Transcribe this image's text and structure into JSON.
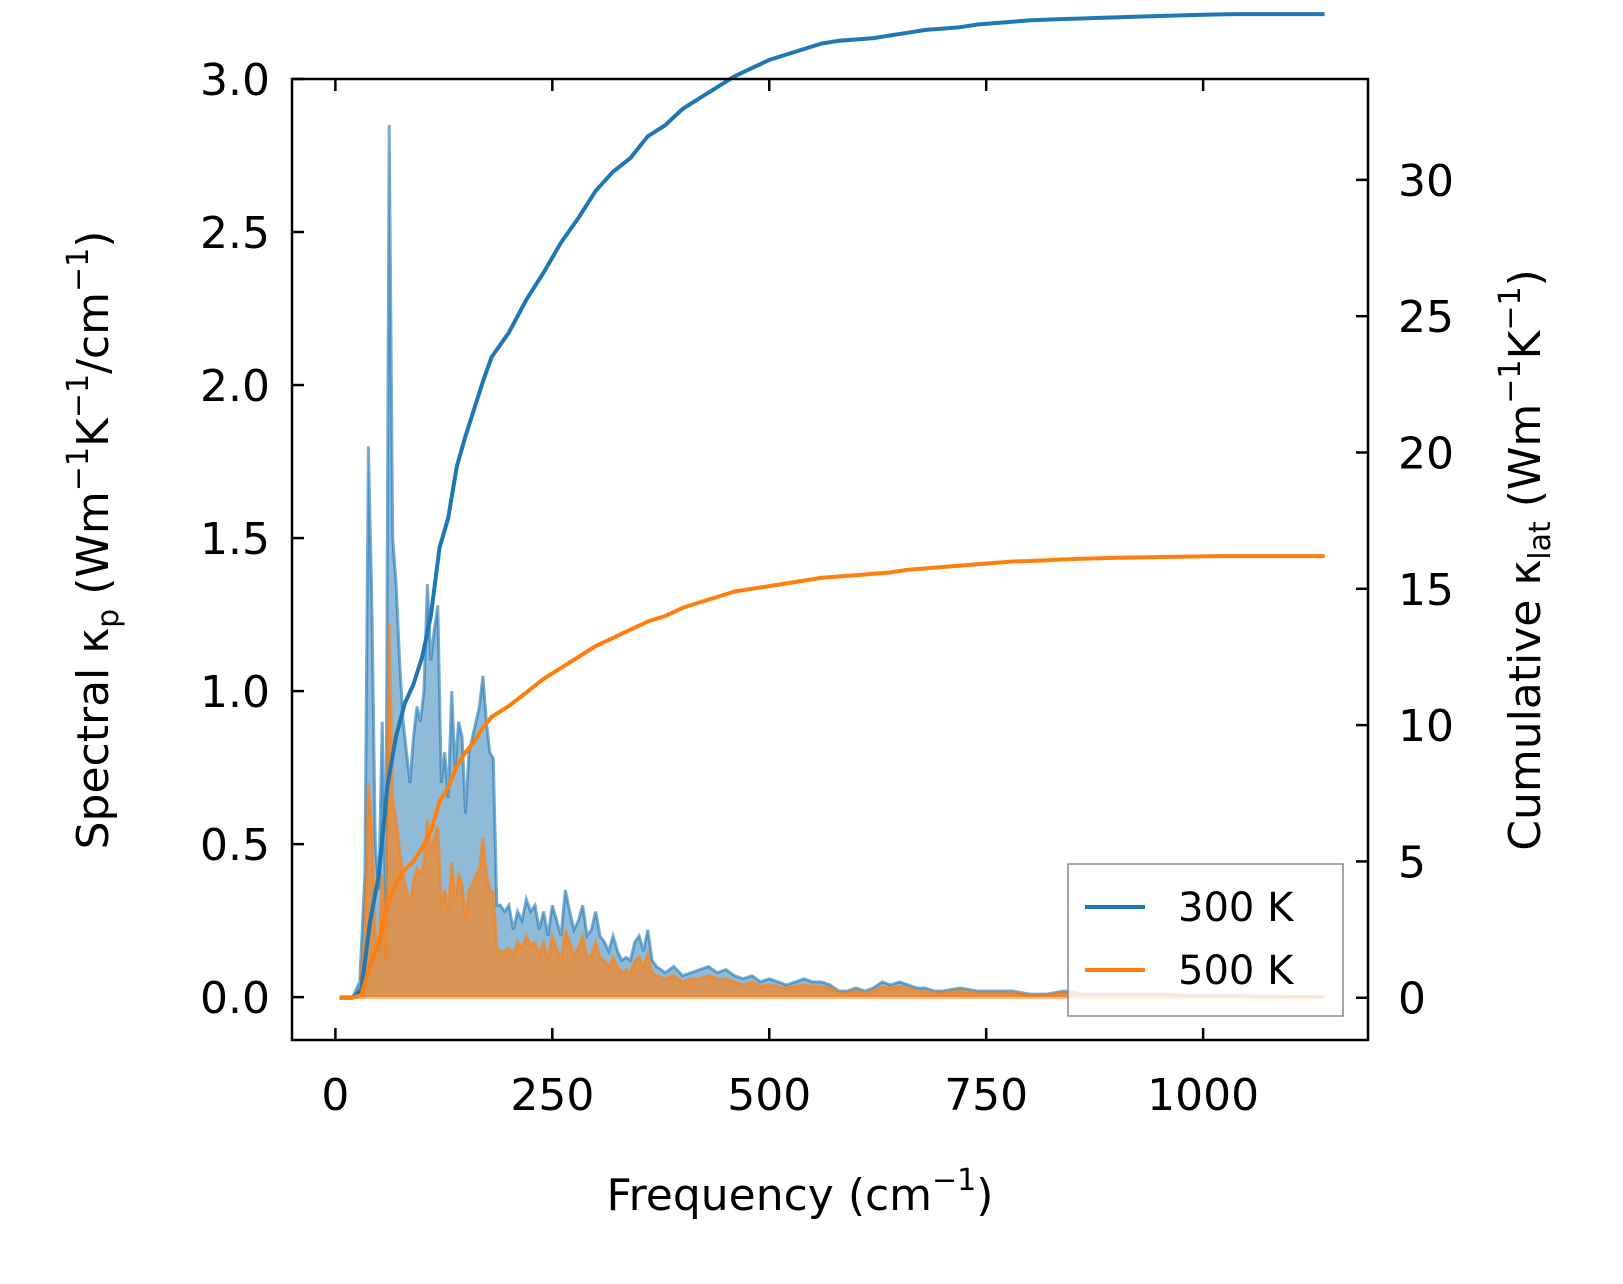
{
  "colors": {
    "series_300K": "#1f77b4",
    "series_500K": "#ff7f0e",
    "fill_300K": "#1f77b4",
    "fill_500K": "#ff7f0e",
    "axis": "#000000"
  },
  "chart_data": {
    "type": "line",
    "xlabel_main": "Frequency (cm",
    "xlabel_sup": "−1",
    "xlabel_end": ")",
    "ylabel_left": {
      "p1": "Spectral κ",
      "sub1": "p",
      "p2": " (Wm",
      "sup1": "−1",
      "p3": "K",
      "sup2": "−1",
      "p4": "/cm",
      "sup3": "−1",
      "p5": ")"
    },
    "ylabel_right": {
      "p1": "Cumulative κ",
      "sub1": "lat",
      "p2": " (Wm",
      "sup1": "−1",
      "p3": "K",
      "sup2": "−1",
      "p4": ")"
    },
    "xlim": [
      -50,
      1190
    ],
    "ylim_left": [
      -0.14,
      3.0
    ],
    "ylim_right": [
      -1.55,
      33.7
    ],
    "x_ticks": [
      0,
      250,
      500,
      750,
      1000
    ],
    "x_tick_labels": [
      "0",
      "250",
      "500",
      "750",
      "1000"
    ],
    "y_left_ticks": [
      0.0,
      0.5,
      1.0,
      1.5,
      2.0,
      2.5,
      3.0
    ],
    "y_left_tick_labels": [
      "0.0",
      "0.5",
      "1.0",
      "1.5",
      "2.0",
      "2.5",
      "3.0"
    ],
    "y_right_ticks": [
      0,
      5,
      10,
      15,
      20,
      25,
      30
    ],
    "y_right_tick_labels": [
      "0",
      "5",
      "10",
      "15",
      "20",
      "25",
      "30"
    ],
    "legend_position": "lower-right",
    "legend": [
      "300 K",
      "500 K"
    ],
    "spectral": [
      {
        "name": "300 K",
        "x": [
          5,
          20,
          28,
          34,
          38,
          42,
          46,
          50,
          54,
          58,
          62,
          66,
          70,
          74,
          78,
          82,
          86,
          90,
          94,
          98,
          102,
          106,
          110,
          114,
          118,
          122,
          126,
          130,
          134,
          138,
          142,
          146,
          150,
          154,
          158,
          162,
          166,
          170,
          174,
          178,
          182,
          186,
          190,
          195,
          200,
          205,
          210,
          215,
          220,
          225,
          230,
          235,
          240,
          245,
          250,
          255,
          260,
          265,
          270,
          275,
          280,
          285,
          290,
          295,
          300,
          305,
          310,
          315,
          320,
          325,
          330,
          335,
          340,
          345,
          350,
          355,
          360,
          365,
          370,
          380,
          390,
          400,
          410,
          420,
          430,
          440,
          450,
          460,
          470,
          480,
          490,
          500,
          510,
          520,
          530,
          540,
          550,
          560,
          570,
          580,
          590,
          600,
          610,
          620,
          630,
          640,
          650,
          660,
          670,
          680,
          690,
          700,
          720,
          740,
          760,
          780,
          800,
          820,
          840,
          860,
          880,
          900,
          920,
          940,
          960,
          980,
          1000,
          1020,
          1040,
          1060,
          1080,
          1100,
          1120,
          1140
        ],
        "y": [
          0,
          0,
          0.05,
          0.4,
          1.8,
          1.3,
          0.5,
          0.35,
          0.9,
          0.3,
          2.85,
          1.5,
          1.35,
          1.1,
          0.9,
          0.8,
          0.7,
          0.85,
          0.95,
          0.9,
          1.0,
          1.35,
          1.1,
          1.2,
          1.28,
          0.7,
          0.8,
          0.65,
          1.0,
          0.75,
          0.9,
          0.85,
          0.6,
          0.8,
          0.85,
          0.9,
          0.95,
          1.05,
          0.9,
          0.8,
          0.78,
          0.3,
          0.3,
          0.28,
          0.3,
          0.22,
          0.28,
          0.25,
          0.32,
          0.28,
          0.3,
          0.22,
          0.28,
          0.2,
          0.3,
          0.25,
          0.2,
          0.35,
          0.28,
          0.22,
          0.25,
          0.3,
          0.2,
          0.22,
          0.28,
          0.2,
          0.18,
          0.15,
          0.2,
          0.15,
          0.12,
          0.13,
          0.12,
          0.18,
          0.2,
          0.15,
          0.22,
          0.12,
          0.1,
          0.08,
          0.1,
          0.07,
          0.08,
          0.09,
          0.1,
          0.08,
          0.09,
          0.07,
          0.06,
          0.07,
          0.05,
          0.06,
          0.05,
          0.04,
          0.05,
          0.06,
          0.05,
          0.05,
          0.04,
          0.02,
          0.02,
          0.03,
          0.02,
          0.03,
          0.05,
          0.04,
          0.05,
          0.04,
          0.03,
          0.03,
          0.02,
          0.02,
          0.03,
          0.02,
          0.02,
          0.02,
          0.01,
          0.01,
          0.02,
          0.01,
          0.01,
          0.01,
          0.01,
          0.01,
          0.01,
          0.005,
          0.005,
          0.005,
          0.005,
          0.003,
          0.003,
          0.002,
          0.002,
          0.001
        ]
      },
      {
        "name": "500 K",
        "x": [
          5,
          20,
          28,
          34,
          38,
          42,
          46,
          50,
          54,
          58,
          62,
          66,
          70,
          74,
          78,
          82,
          86,
          90,
          94,
          98,
          102,
          106,
          110,
          114,
          118,
          122,
          126,
          130,
          134,
          138,
          142,
          146,
          150,
          154,
          158,
          162,
          166,
          170,
          174,
          178,
          182,
          186,
          190,
          195,
          200,
          205,
          210,
          215,
          220,
          225,
          230,
          235,
          240,
          245,
          250,
          255,
          260,
          265,
          270,
          275,
          280,
          285,
          290,
          295,
          300,
          305,
          310,
          315,
          320,
          325,
          330,
          335,
          340,
          345,
          350,
          355,
          360,
          365,
          370,
          380,
          390,
          400,
          410,
          420,
          430,
          440,
          450,
          460,
          470,
          480,
          490,
          500,
          510,
          520,
          530,
          540,
          550,
          560,
          570,
          580,
          590,
          600,
          610,
          620,
          630,
          640,
          650,
          660,
          670,
          680,
          690,
          700,
          720,
          740,
          760,
          780,
          800,
          820,
          840,
          860,
          880,
          900,
          920,
          940,
          960,
          980,
          1000,
          1020,
          1040,
          1060,
          1080,
          1100,
          1120,
          1140
        ],
        "y": [
          0,
          0,
          0.02,
          0.2,
          0.7,
          0.55,
          0.2,
          0.15,
          0.4,
          0.12,
          1.22,
          0.65,
          0.58,
          0.48,
          0.4,
          0.35,
          0.3,
          0.38,
          0.42,
          0.4,
          0.44,
          0.58,
          0.48,
          0.52,
          0.56,
          0.3,
          0.35,
          0.28,
          0.44,
          0.32,
          0.4,
          0.37,
          0.26,
          0.35,
          0.37,
          0.4,
          0.42,
          0.52,
          0.4,
          0.35,
          0.34,
          0.16,
          0.15,
          0.15,
          0.16,
          0.14,
          0.18,
          0.16,
          0.2,
          0.17,
          0.18,
          0.14,
          0.18,
          0.12,
          0.2,
          0.16,
          0.12,
          0.22,
          0.18,
          0.14,
          0.16,
          0.2,
          0.13,
          0.14,
          0.18,
          0.13,
          0.12,
          0.1,
          0.13,
          0.1,
          0.08,
          0.09,
          0.08,
          0.12,
          0.13,
          0.1,
          0.14,
          0.08,
          0.07,
          0.06,
          0.07,
          0.05,
          0.06,
          0.06,
          0.07,
          0.06,
          0.06,
          0.05,
          0.04,
          0.05,
          0.035,
          0.04,
          0.035,
          0.03,
          0.035,
          0.04,
          0.035,
          0.035,
          0.03,
          0.015,
          0.015,
          0.02,
          0.015,
          0.02,
          0.035,
          0.03,
          0.035,
          0.03,
          0.02,
          0.02,
          0.015,
          0.015,
          0.02,
          0.015,
          0.015,
          0.015,
          0.008,
          0.008,
          0.015,
          0.008,
          0.008,
          0.008,
          0.008,
          0.008,
          0.008,
          0.004,
          0.004,
          0.004,
          0.004,
          0.002,
          0.002,
          0.002,
          0.002,
          0.001
        ]
      }
    ],
    "cumulative": [
      {
        "name": "300 K",
        "x": [
          5,
          20,
          30,
          40,
          50,
          60,
          70,
          80,
          90,
          100,
          110,
          120,
          130,
          140,
          150,
          160,
          170,
          180,
          200,
          220,
          240,
          260,
          280,
          300,
          320,
          340,
          360,
          380,
          400,
          420,
          440,
          460,
          480,
          500,
          520,
          540,
          560,
          580,
          600,
          620,
          640,
          660,
          680,
          700,
          720,
          740,
          760,
          780,
          800,
          820,
          840,
          860,
          880,
          900,
          920,
          940,
          960,
          980,
          1000,
          1020,
          1040,
          1060,
          1080,
          1100,
          1120,
          1140
        ],
        "y": [
          0,
          0,
          0.3,
          2.8,
          4.5,
          7.8,
          9.6,
          10.8,
          11.5,
          12.5,
          14.0,
          16.5,
          17.6,
          19.5,
          20.6,
          21.6,
          22.6,
          23.5,
          24.4,
          25.6,
          26.6,
          27.7,
          28.6,
          29.6,
          30.3,
          30.8,
          31.6,
          32.0,
          32.6,
          33.0,
          33.4,
          33.8,
          34.1,
          34.4,
          34.6,
          34.8,
          35.0,
          35.1,
          35.15,
          35.2,
          35.3,
          35.4,
          35.5,
          35.55,
          35.6,
          35.7,
          35.75,
          35.8,
          35.85,
          35.88,
          35.9,
          35.92,
          35.94,
          35.96,
          35.98,
          36.0,
          36.02,
          36.04,
          36.06,
          36.07,
          36.08,
          36.08,
          36.08,
          36.08,
          36.08,
          36.08
        ]
      },
      {
        "name": "500 K",
        "x": [
          5,
          20,
          30,
          40,
          50,
          60,
          70,
          80,
          90,
          100,
          110,
          120,
          130,
          140,
          150,
          160,
          170,
          180,
          200,
          220,
          240,
          260,
          280,
          300,
          320,
          340,
          360,
          380,
          400,
          420,
          440,
          460,
          480,
          500,
          520,
          540,
          560,
          580,
          600,
          620,
          640,
          660,
          680,
          700,
          720,
          740,
          760,
          780,
          800,
          820,
          840,
          860,
          880,
          900,
          920,
          940,
          960,
          980,
          1000,
          1020,
          1040,
          1060,
          1080,
          1100,
          1120,
          1140
        ],
        "y": [
          0,
          0,
          0.1,
          1.2,
          2.0,
          3.4,
          4.2,
          4.7,
          5.0,
          5.5,
          6.1,
          7.2,
          7.7,
          8.5,
          9.0,
          9.4,
          9.9,
          10.3,
          10.7,
          11.2,
          11.7,
          12.1,
          12.5,
          12.9,
          13.2,
          13.5,
          13.8,
          14.0,
          14.3,
          14.5,
          14.7,
          14.9,
          15.0,
          15.1,
          15.2,
          15.3,
          15.4,
          15.45,
          15.5,
          15.55,
          15.6,
          15.7,
          15.75,
          15.8,
          15.85,
          15.9,
          15.95,
          16.0,
          16.02,
          16.05,
          16.08,
          16.1,
          16.12,
          16.14,
          16.15,
          16.16,
          16.17,
          16.18,
          16.19,
          16.2,
          16.2,
          16.2,
          16.2,
          16.2,
          16.2,
          16.2
        ]
      }
    ]
  }
}
